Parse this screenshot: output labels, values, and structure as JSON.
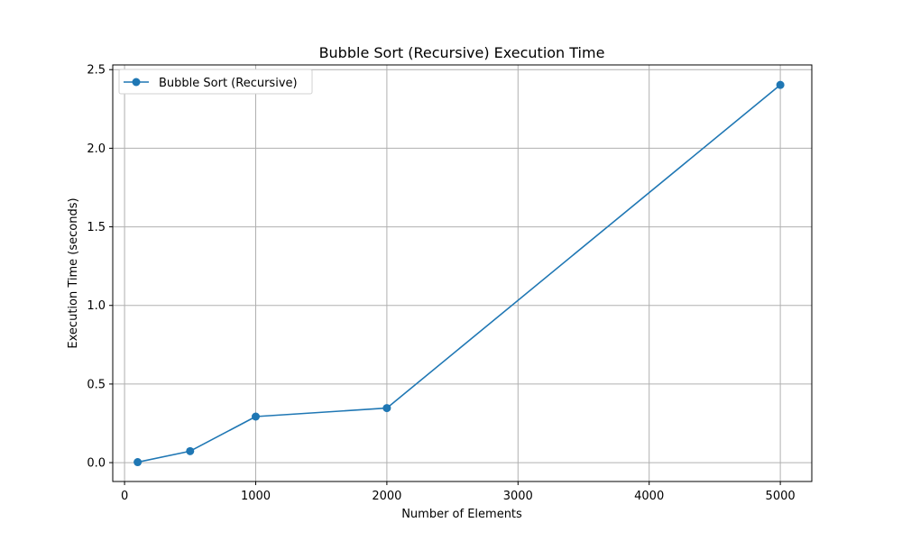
{
  "chart_data": {
    "type": "line",
    "title": "Bubble Sort (Recursive) Execution Time",
    "xlabel": "Number of Elements",
    "ylabel": "Execution Time (seconds)",
    "x_ticks": [
      0,
      1000,
      2000,
      3000,
      4000,
      5000
    ],
    "y_ticks": [
      0.0,
      0.5,
      1.0,
      1.5,
      2.0,
      2.5
    ],
    "x_tick_labels": [
      "0",
      "1000",
      "2000",
      "3000",
      "4000",
      "5000"
    ],
    "y_tick_labels": [
      "0.0",
      "0.5",
      "1.0",
      "1.5",
      "2.0",
      "2.5"
    ],
    "xlim": [
      -90,
      5240
    ],
    "ylim": [
      -0.12,
      2.53
    ],
    "grid": true,
    "legend_position": "upper-left",
    "series": [
      {
        "name": "Bubble Sort (Recursive)",
        "color": "#1f77b4",
        "marker": "circle",
        "x": [
          100,
          500,
          1000,
          2000,
          5000
        ],
        "y": [
          0.003,
          0.073,
          0.293,
          0.347,
          2.403
        ]
      }
    ]
  }
}
